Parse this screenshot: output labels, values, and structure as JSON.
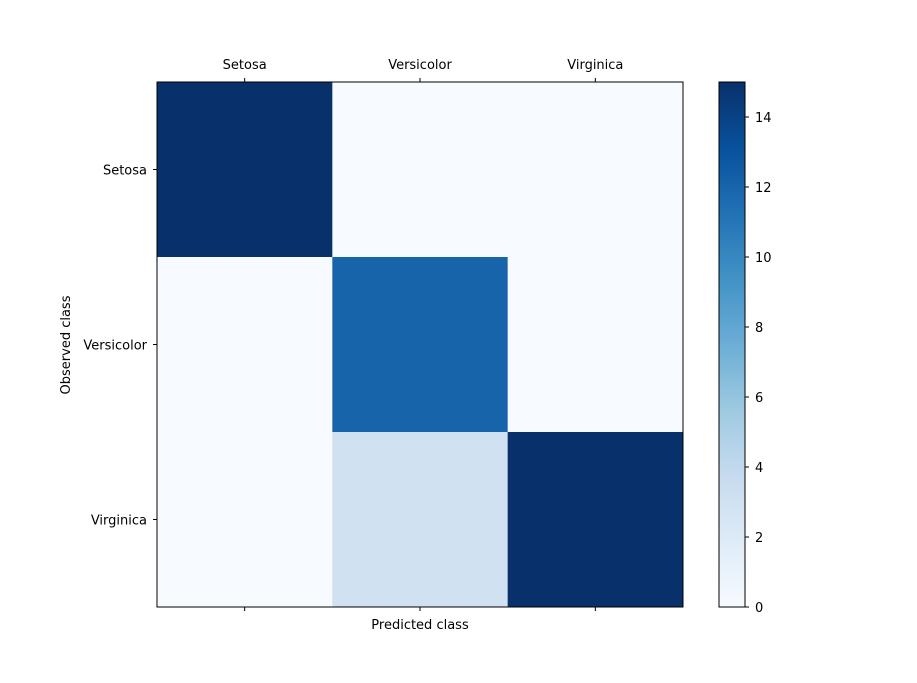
{
  "chart_data": {
    "type": "heatmap",
    "title": "",
    "xlabel": "Predicted class",
    "ylabel": "Observed class",
    "x_categories": [
      "Setosa",
      "Versicolor",
      "Virginica"
    ],
    "y_categories": [
      "Setosa",
      "Versicolor",
      "Virginica"
    ],
    "x_tick_position": "top",
    "matrix": [
      [
        15,
        0,
        0
      ],
      [
        0,
        12,
        0
      ],
      [
        0,
        3,
        15
      ]
    ],
    "colormap": "Blues",
    "color_range": [
      0,
      15
    ],
    "colorbar_ticks": [
      0,
      2,
      4,
      6,
      8,
      10,
      12,
      14
    ],
    "colorbar_labels": [
      "0",
      "2",
      "4",
      "6",
      "8",
      "10",
      "12",
      "14"
    ],
    "grid": false
  }
}
